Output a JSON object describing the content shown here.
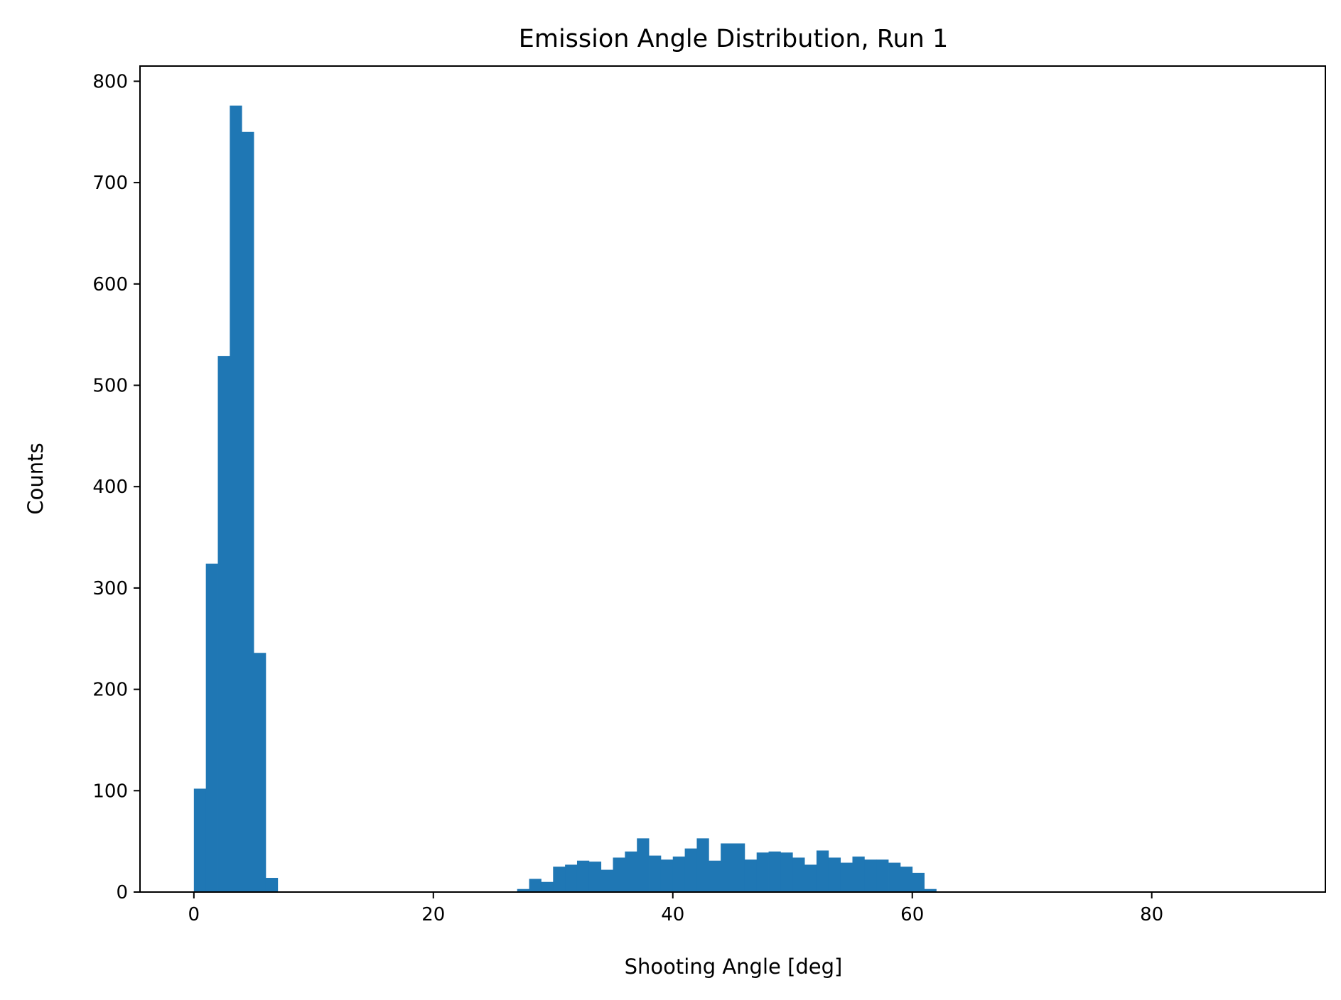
{
  "chart_data": {
    "type": "bar",
    "title": "Emission Angle Distribution, Run 1",
    "xlabel": "Shooting Angle [deg]",
    "ylabel": "Counts",
    "xlim": [
      -4.5,
      94.5
    ],
    "ylim": [
      0,
      815
    ],
    "xticks": [
      0,
      20,
      40,
      60,
      80
    ],
    "yticks": [
      0,
      100,
      200,
      300,
      400,
      500,
      600,
      700,
      800
    ],
    "grid": false,
    "bar_color": "#1f77b4",
    "bin_width": 1,
    "bin_start": 0,
    "values": [
      102,
      324,
      529,
      776,
      750,
      236,
      14,
      0,
      0,
      0,
      0,
      0,
      0,
      0,
      0,
      0,
      0,
      0,
      0,
      0,
      0,
      0,
      0,
      0,
      0,
      0,
      0,
      3,
      13,
      10,
      25,
      27,
      31,
      30,
      22,
      34,
      40,
      53,
      36,
      32,
      35,
      43,
      53,
      31,
      48,
      48,
      32,
      39,
      40,
      39,
      34,
      27,
      41,
      34,
      29,
      35,
      32,
      32,
      29,
      25,
      19,
      3,
      0,
      0,
      0,
      0,
      0,
      0,
      0,
      0,
      0,
      0,
      0,
      0,
      0,
      0,
      0,
      0,
      0,
      0,
      0,
      0,
      0,
      0,
      0,
      0,
      0,
      0,
      0,
      0
    ]
  }
}
